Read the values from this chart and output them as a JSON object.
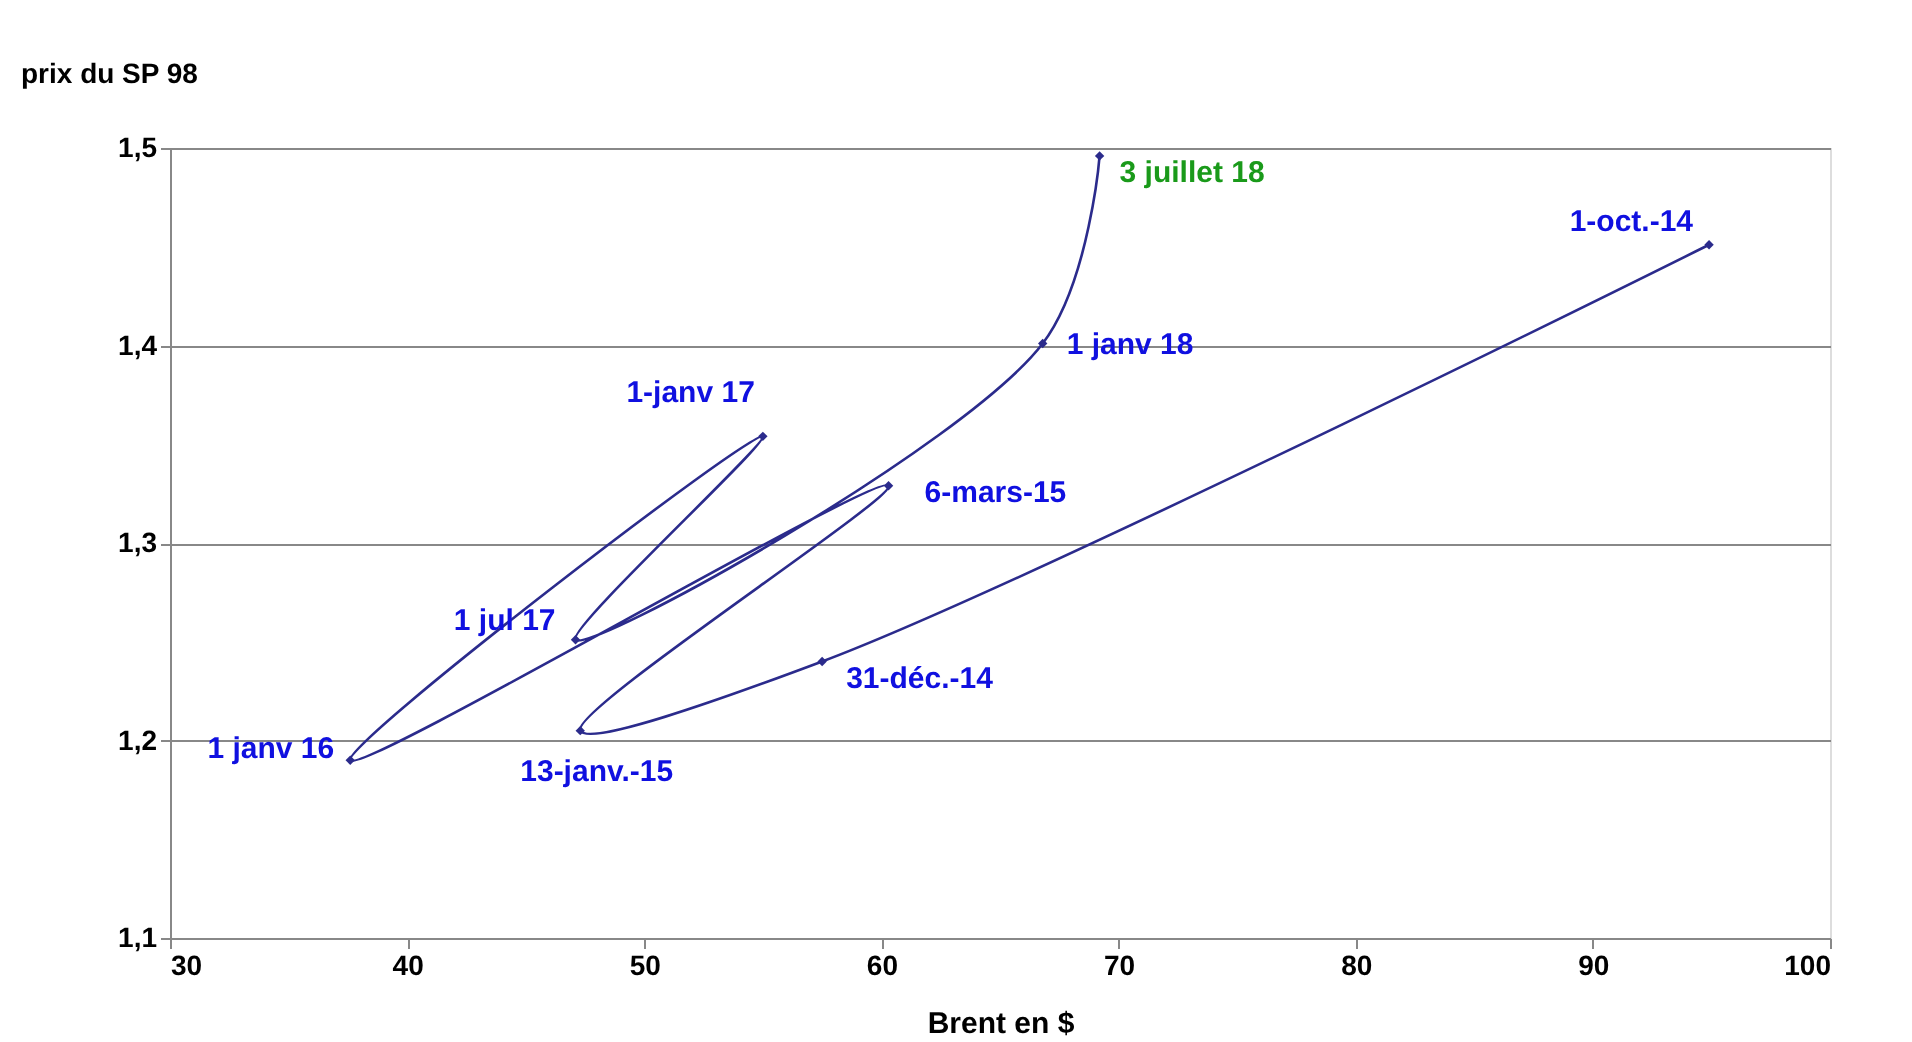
{
  "chart_data": {
    "type": "line",
    "xlabel": "Brent en $",
    "ylabel": "prix du SP 98",
    "x": [
      94.9,
      57.5,
      47.3,
      60.3,
      37.6,
      55.0,
      47.1,
      66.8,
      69.2
    ],
    "series": [
      {
        "color": "#2b2b8c",
        "values": [
          1.451,
          1.24,
          1.205,
          1.329,
          1.19,
          1.354,
          1.251,
          1.401,
          1.496
        ]
      }
    ],
    "marker": "diamond",
    "grid": "y",
    "xlim": [
      30,
      100
    ],
    "xticks": [
      30,
      40,
      50,
      60,
      70,
      80,
      90,
      100
    ],
    "ylim": [
      1.1,
      1.5
    ],
    "yticks": [
      {
        "value": 1.1,
        "label": "1,1"
      },
      {
        "value": 1.2,
        "label": "1,2"
      },
      {
        "value": 1.3,
        "label": "1,3"
      },
      {
        "value": 1.4,
        "label": "1,4"
      },
      {
        "value": 1.5,
        "label": "1,5"
      }
    ],
    "annotations": [
      {
        "text": "1-oct.-14",
        "x": 94.9,
        "y": 1.451
      },
      {
        "text": "31-déc.-14",
        "x": 57.5,
        "y": 1.24
      },
      {
        "text": "13-janv.-15",
        "x": 47.3,
        "y": 1.205
      },
      {
        "text": "6-mars-15",
        "x": 60.3,
        "y": 1.329
      },
      {
        "text": "1 janv 16",
        "x": 37.6,
        "y": 1.19
      },
      {
        "text": "1-janv 17",
        "x": 55.0,
        "y": 1.354
      },
      {
        "text": "1 jul 17",
        "x": 47.1,
        "y": 1.251
      },
      {
        "text": "1 janv 18",
        "x": 66.8,
        "y": 1.401
      },
      {
        "text": "3 juillet 18",
        "x": 69.2,
        "y": 1.496
      }
    ]
  }
}
